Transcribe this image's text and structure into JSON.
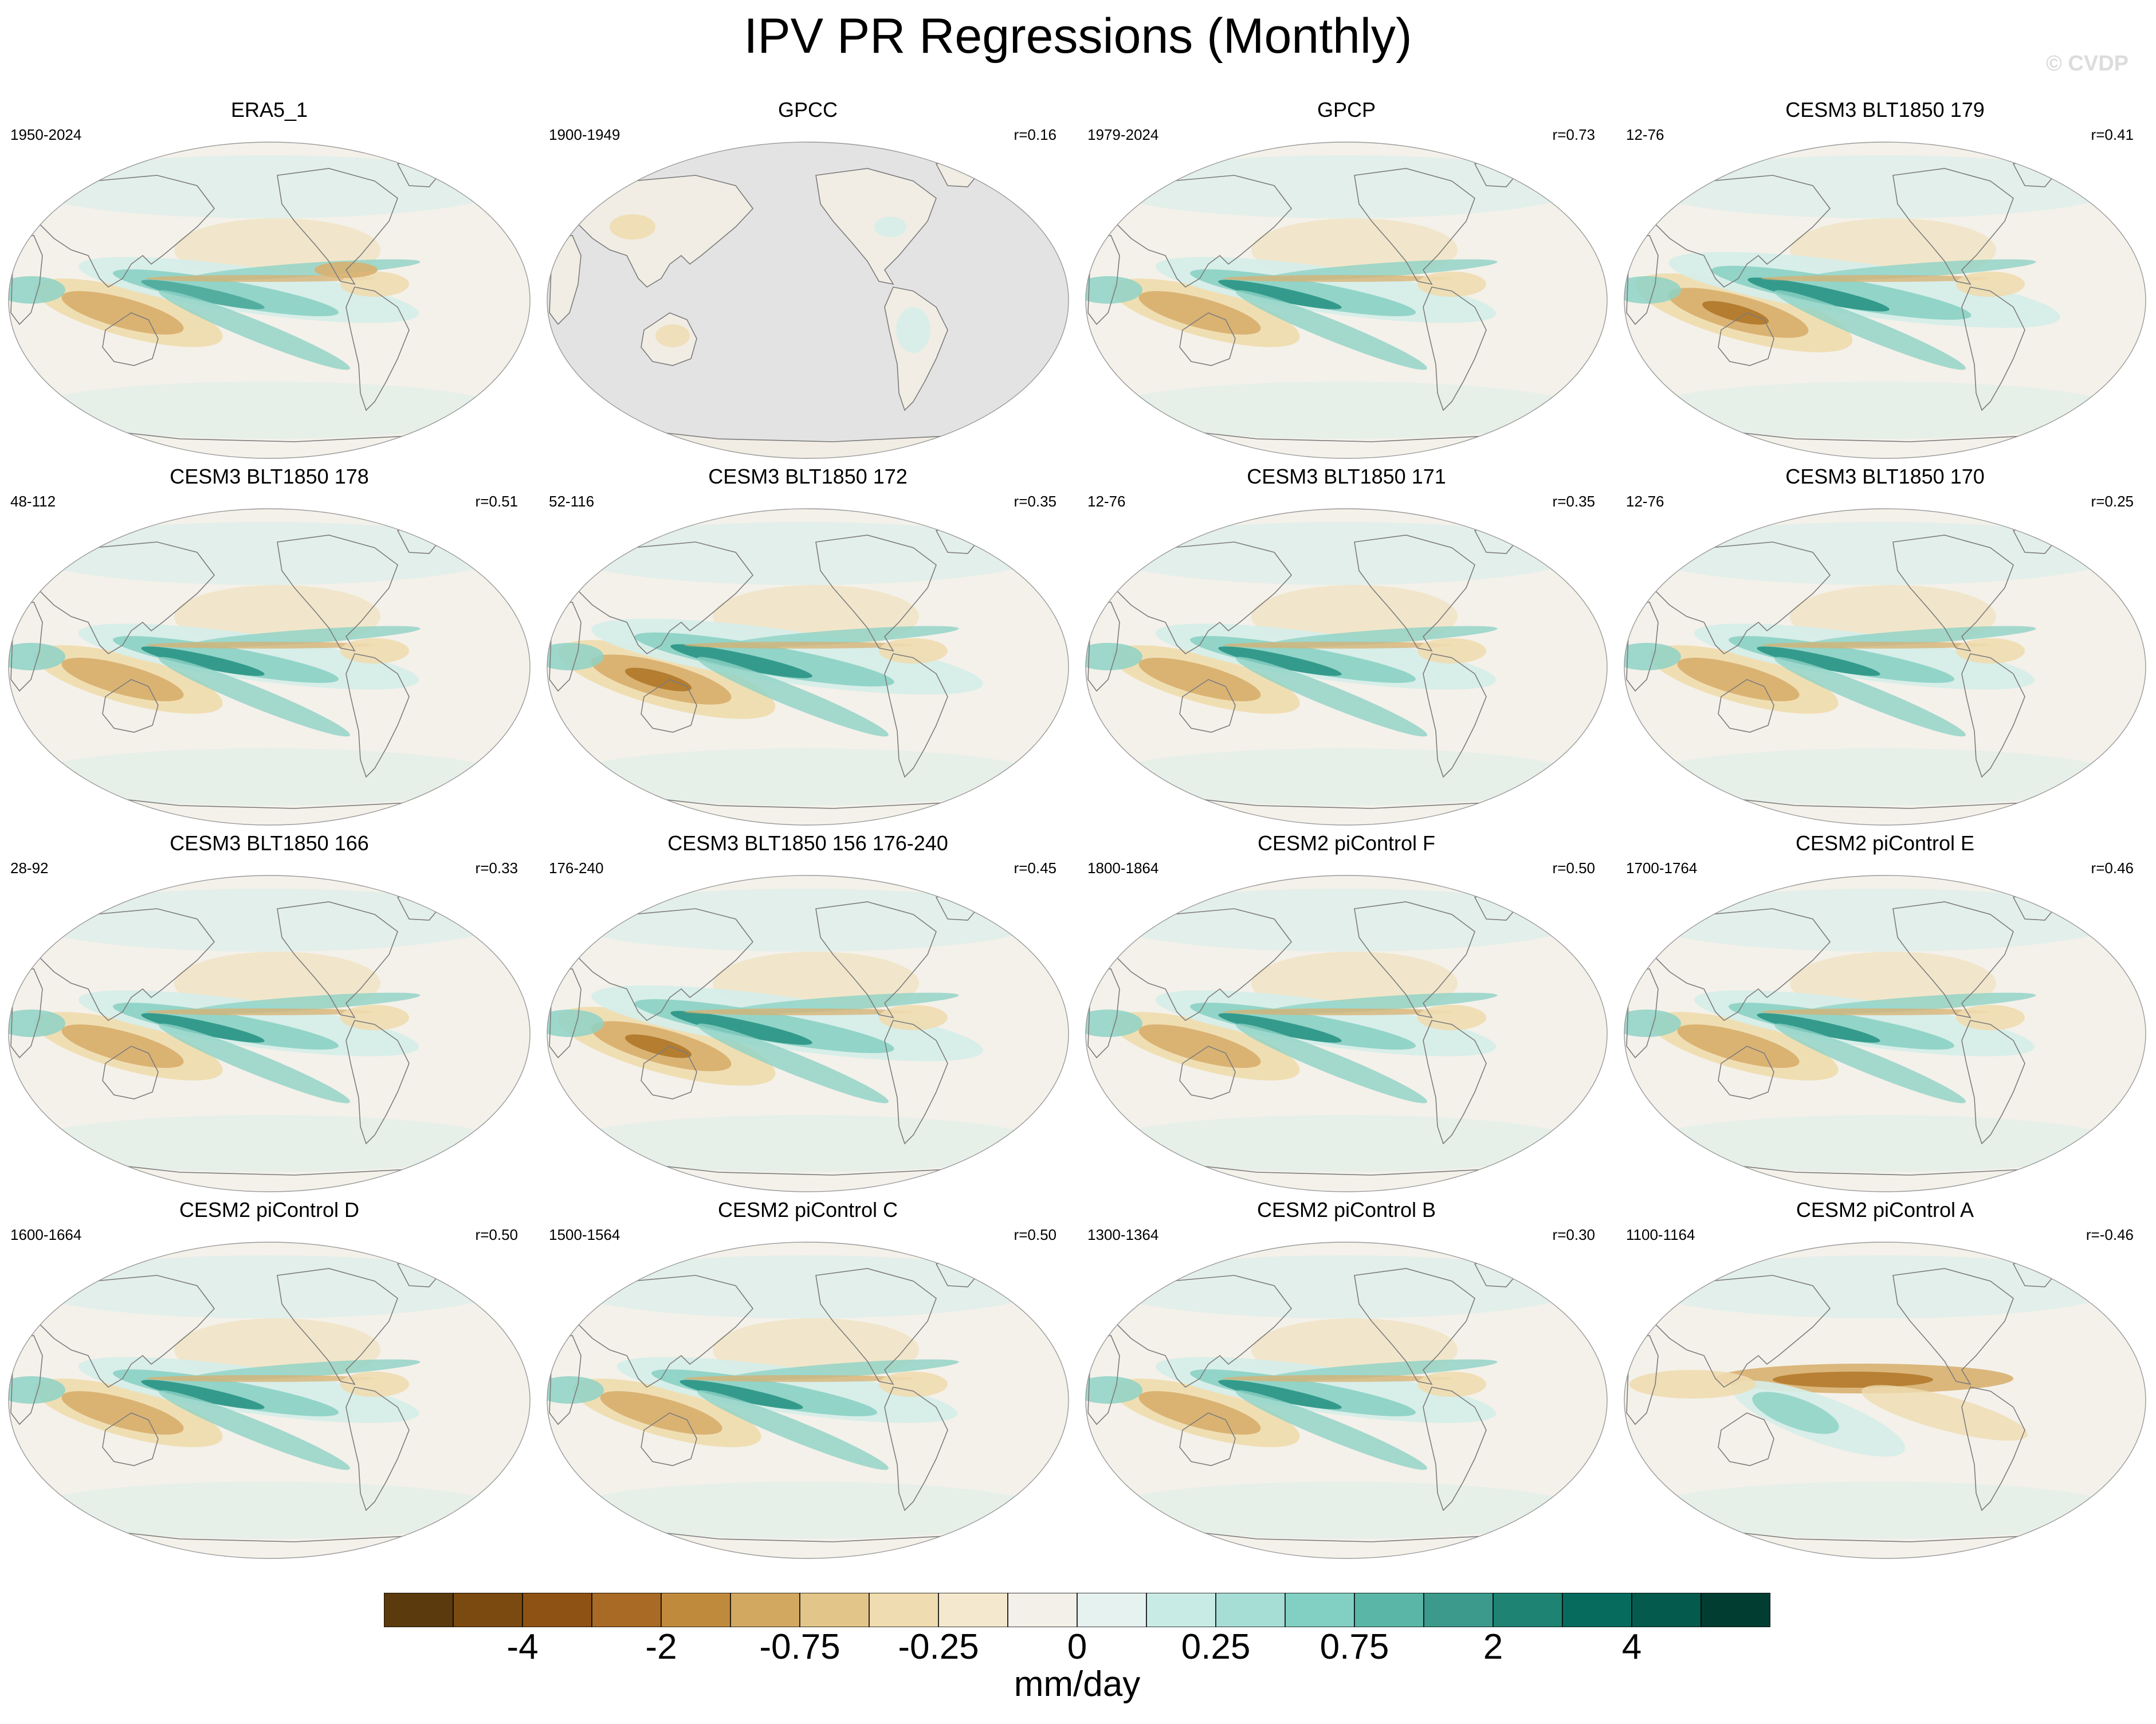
{
  "title": "IPV PR Regressions (Monthly)",
  "watermark": "© CVDP",
  "panels": [
    {
      "title": "ERA5_1",
      "period": "1950-2024",
      "corr": "",
      "pattern": "obs"
    },
    {
      "title": "GPCC",
      "period": "1900-1949",
      "corr": "r=0.16",
      "pattern": "land"
    },
    {
      "title": "GPCP",
      "period": "1979-2024",
      "corr": "r=0.73",
      "pattern": "obs2"
    },
    {
      "title": "CESM3 BLT1850 179",
      "period": "12-76",
      "corr": "r=0.41",
      "pattern": "strong"
    },
    {
      "title": "CESM3 BLT1850 178",
      "period": "48-112",
      "corr": "r=0.51",
      "pattern": "model"
    },
    {
      "title": "CESM3 BLT1850 172",
      "period": "52-116",
      "corr": "r=0.35",
      "pattern": "strong"
    },
    {
      "title": "CESM3 BLT1850 171",
      "period": "12-76",
      "corr": "r=0.35",
      "pattern": "model"
    },
    {
      "title": "CESM3 BLT1850 170",
      "period": "12-76",
      "corr": "r=0.25",
      "pattern": "model"
    },
    {
      "title": "CESM3 BLT1850 166",
      "period": "28-92",
      "corr": "r=0.33",
      "pattern": "model"
    },
    {
      "title": "CESM3 BLT1850 156 176-240",
      "period": "176-240",
      "corr": "r=0.45",
      "pattern": "strong"
    },
    {
      "title": "CESM2 piControl F",
      "period": "1800-1864",
      "corr": "r=0.50",
      "pattern": "model"
    },
    {
      "title": "CESM2 piControl E",
      "period": "1700-1764",
      "corr": "r=0.46",
      "pattern": "model"
    },
    {
      "title": "CESM2 piControl D",
      "period": "1600-1664",
      "corr": "r=0.50",
      "pattern": "model"
    },
    {
      "title": "CESM2 piControl C",
      "period": "1500-1564",
      "corr": "r=0.50",
      "pattern": "model"
    },
    {
      "title": "CESM2 piControl B",
      "period": "1300-1364",
      "corr": "r=0.30",
      "pattern": "model"
    },
    {
      "title": "CESM2 piControl A",
      "period": "1100-1164",
      "corr": "r=-0.46",
      "pattern": "inverse"
    }
  ],
  "colorbar": {
    "colors": [
      "#5b3a0d",
      "#7a4a10",
      "#8e5214",
      "#a86a24",
      "#c08a3c",
      "#d2a860",
      "#e2c588",
      "#efdcb0",
      "#f4e9cf",
      "#f3f0ea",
      "#e6f2f0",
      "#c9ebe5",
      "#a6ddd4",
      "#82cfc3",
      "#5ab6a7",
      "#3b9a8c",
      "#1e8373",
      "#066b5d",
      "#045a4d",
      "#023d32"
    ],
    "labels": [
      "-4",
      "-2",
      "-0.75",
      "-0.25",
      "0",
      "0.25",
      "0.75",
      "2",
      "4"
    ],
    "units": "mm/day"
  },
  "palette": {
    "ocean_bg": "#f4f1ea",
    "land_missing": "#e3e3e3",
    "coast": "#7c7c7c",
    "wet_light": "#d6ede9",
    "wet_mid": "#8ed2c6",
    "wet_dark": "#2a9585",
    "dry_light": "#efdcb0",
    "dry_mid": "#d8b070",
    "dry_dark": "#b27a2c"
  }
}
